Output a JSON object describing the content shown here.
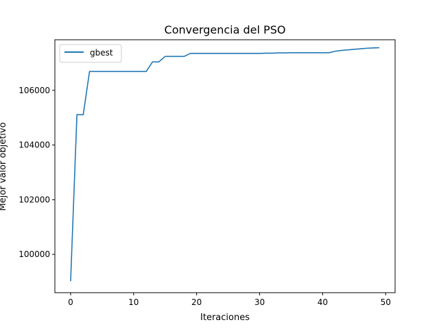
{
  "chart_data": {
    "type": "line",
    "title": "Convergencia del PSO",
    "xlabel": "Iteraciones",
    "ylabel": "Mejor valor objetivo",
    "xlim": [
      -2.5,
      51.5
    ],
    "ylim": [
      98600,
      107850
    ],
    "xticks": [
      0,
      10,
      20,
      30,
      40,
      50
    ],
    "yticks": [
      100000,
      102000,
      104000,
      106000
    ],
    "xtick_labels": [
      "0",
      "10",
      "20",
      "30",
      "40",
      "50"
    ],
    "ytick_labels": [
      "100000",
      "102000",
      "104000",
      "106000"
    ],
    "grid": false,
    "legend_position": "upper-left",
    "series": [
      {
        "name": "gbest",
        "color": "#1f77b4",
        "x": [
          0,
          1,
          2,
          3,
          4,
          5,
          6,
          7,
          8,
          9,
          10,
          11,
          12,
          13,
          14,
          15,
          16,
          17,
          18,
          19,
          20,
          21,
          22,
          23,
          24,
          25,
          26,
          27,
          28,
          29,
          30,
          31,
          32,
          33,
          34,
          35,
          36,
          37,
          38,
          39,
          40,
          41,
          42,
          43,
          44,
          45,
          46,
          47,
          48,
          49
        ],
        "y": [
          99020,
          105110,
          105110,
          106690,
          106690,
          106690,
          106690,
          106690,
          106690,
          106690,
          106690,
          106690,
          106690,
          107040,
          107040,
          107240,
          107240,
          107240,
          107240,
          107350,
          107350,
          107350,
          107350,
          107350,
          107350,
          107350,
          107350,
          107350,
          107350,
          107350,
          107350,
          107360,
          107360,
          107370,
          107370,
          107375,
          107375,
          107375,
          107375,
          107375,
          107375,
          107375,
          107430,
          107460,
          107480,
          107500,
          107520,
          107540,
          107550,
          107560
        ]
      }
    ]
  }
}
